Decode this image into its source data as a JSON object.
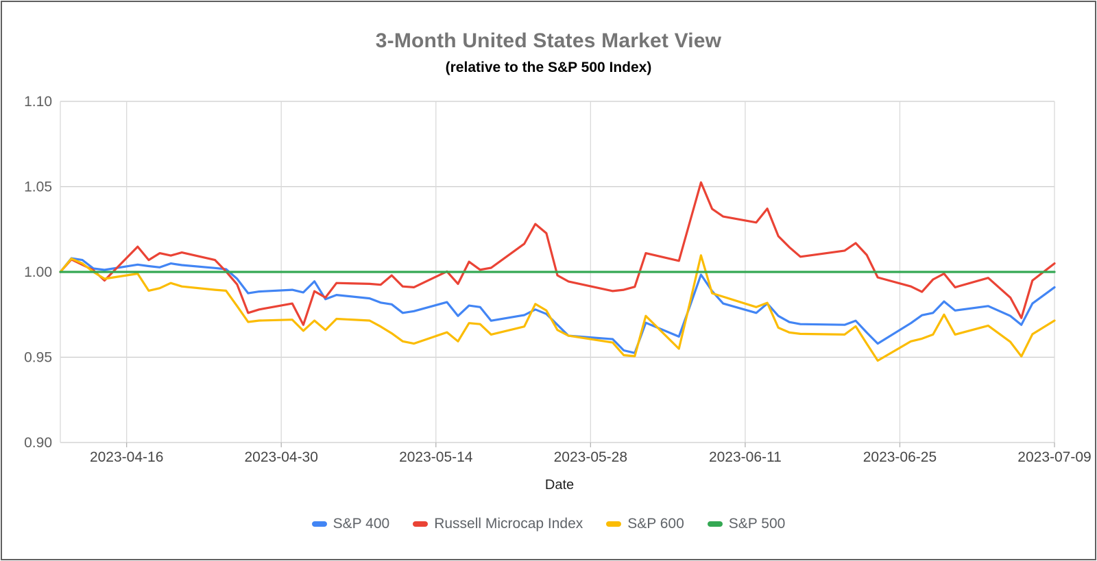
{
  "header": {
    "title": "3-Month United States Market View",
    "subtitle": "(relative to the S&P 500 Index)"
  },
  "axes": {
    "x_label": "Date",
    "y_tick_labels": [
      "1.10",
      "1.05",
      "1.00",
      "0.95",
      "0.90"
    ],
    "x_tick_labels": [
      "2023-04-16",
      "2023-04-30",
      "2023-05-14",
      "2023-05-28",
      "2023-06-11",
      "2023-06-25",
      "2023-07-09"
    ]
  },
  "colors": {
    "sp400": "#4285f4",
    "russell_microcap": "#ea4335",
    "sp600": "#fbbc04",
    "sp500": "#34a853",
    "grid_horizontal": "#cccccc",
    "grid_vertical": "#d9d9d9",
    "tick_stub": "#b3b3b3",
    "y_label_text": "#5f5f5f",
    "x_label_text": "#464646",
    "title_text": "#757575",
    "frame_border": "#5f5f5f"
  },
  "chart_data": {
    "type": "line",
    "title": "3-Month United States Market View",
    "subtitle": "(relative to the S&P 500 Index)",
    "xlabel": "Date",
    "ylabel": "",
    "ylim": [
      0.9,
      1.1
    ],
    "y_ticks": [
      0.9,
      0.95,
      1.0,
      1.05,
      1.1
    ],
    "x_range": [
      "2023-04-10",
      "2023-07-09"
    ],
    "x_ticks": [
      "2023-04-16",
      "2023-04-30",
      "2023-05-14",
      "2023-05-28",
      "2023-06-11",
      "2023-06-25",
      "2023-07-09"
    ],
    "grid": true,
    "legend_position": "bottom",
    "dates": [
      "2023-04-10",
      "2023-04-11",
      "2023-04-12",
      "2023-04-13",
      "2023-04-14",
      "2023-04-17",
      "2023-04-18",
      "2023-04-19",
      "2023-04-20",
      "2023-04-21",
      "2023-04-24",
      "2023-04-25",
      "2023-04-26",
      "2023-04-27",
      "2023-04-28",
      "2023-05-01",
      "2023-05-02",
      "2023-05-03",
      "2023-05-04",
      "2023-05-05",
      "2023-05-08",
      "2023-05-09",
      "2023-05-10",
      "2023-05-11",
      "2023-05-12",
      "2023-05-15",
      "2023-05-16",
      "2023-05-17",
      "2023-05-18",
      "2023-05-19",
      "2023-05-22",
      "2023-05-23",
      "2023-05-24",
      "2023-05-25",
      "2023-05-26",
      "2023-05-30",
      "2023-05-31",
      "2023-06-01",
      "2023-06-02",
      "2023-06-05",
      "2023-06-06",
      "2023-06-07",
      "2023-06-08",
      "2023-06-09",
      "2023-06-12",
      "2023-06-13",
      "2023-06-14",
      "2023-06-15",
      "2023-06-16",
      "2023-06-20",
      "2023-06-21",
      "2023-06-22",
      "2023-06-23",
      "2023-06-26",
      "2023-06-27",
      "2023-06-28",
      "2023-06-29",
      "2023-06-30",
      "2023-07-03",
      "2023-07-05",
      "2023-07-06",
      "2023-07-07",
      "2023-07-09"
    ],
    "series": [
      {
        "name": "S&P 400",
        "color": "#4285f4",
        "values": [
          1.0,
          1.008,
          1.007,
          1.002,
          1.0012,
          1.0043,
          1.0034,
          1.0027,
          1.005,
          1.004,
          1.0023,
          1.0016,
          0.996,
          0.9875,
          0.9885,
          0.9895,
          0.988,
          0.9945,
          0.984,
          0.9865,
          0.9845,
          0.982,
          0.981,
          0.976,
          0.977,
          0.9823,
          0.9742,
          0.9803,
          0.9794,
          0.9714,
          0.9747,
          0.978,
          0.9754,
          0.969,
          0.9626,
          0.9606,
          0.954,
          0.9525,
          0.9702,
          0.9621,
          0.98,
          0.9984,
          0.9888,
          0.9815,
          0.976,
          0.9815,
          0.9742,
          0.9706,
          0.9694,
          0.969,
          0.9714,
          0.9645,
          0.958,
          0.97,
          0.9746,
          0.976,
          0.9827,
          0.9774,
          0.98,
          0.9742,
          0.969,
          0.9815,
          0.991
        ]
      },
      {
        "name": "Russell Microcap Index",
        "color": "#ea4335",
        "values": [
          1.0,
          1.0073,
          1.0042,
          1.001,
          0.995,
          1.0148,
          1.007,
          1.011,
          1.0096,
          1.0114,
          1.007,
          1.0003,
          0.9927,
          0.976,
          0.978,
          0.9815,
          0.969,
          0.9887,
          0.985,
          0.9935,
          0.993,
          0.9925,
          0.998,
          0.9915,
          0.991,
          1.0003,
          0.993,
          1.006,
          1.0013,
          1.0024,
          1.0165,
          1.0281,
          1.0227,
          0.998,
          0.9944,
          0.9888,
          0.9895,
          0.9913,
          1.011,
          1.0065,
          1.0295,
          1.0525,
          1.037,
          1.0325,
          1.029,
          1.0371,
          1.021,
          1.0145,
          1.0089,
          1.0125,
          1.0169,
          1.01,
          0.9968,
          0.9915,
          0.9883,
          0.9956,
          0.999,
          0.991,
          0.9965,
          0.985,
          0.973,
          0.995,
          1.005
        ]
      },
      {
        "name": "S&P 600",
        "color": "#fbbc04",
        "values": [
          1.0,
          1.0078,
          1.005,
          1.0,
          0.996,
          0.999,
          0.989,
          0.9905,
          0.9935,
          0.9915,
          0.9895,
          0.989,
          0.98,
          0.9707,
          0.9715,
          0.972,
          0.9655,
          0.9715,
          0.966,
          0.9725,
          0.9715,
          0.968,
          0.964,
          0.9593,
          0.958,
          0.9646,
          0.9593,
          0.97,
          0.9694,
          0.9633,
          0.968,
          0.9812,
          0.9774,
          0.966,
          0.9626,
          0.9586,
          0.9512,
          0.9506,
          0.9742,
          0.955,
          0.982,
          1.0097,
          0.9875,
          0.9855,
          0.9794,
          0.9819,
          0.9673,
          0.9645,
          0.9637,
          0.9633,
          0.9681,
          0.958,
          0.948,
          0.9593,
          0.9609,
          0.9633,
          0.975,
          0.9633,
          0.9685,
          0.959,
          0.9505,
          0.9635,
          0.9715
        ]
      },
      {
        "name": "S&P 500",
        "color": "#34a853",
        "values": [
          1,
          1,
          1,
          1,
          1,
          1,
          1,
          1,
          1,
          1,
          1,
          1,
          1,
          1,
          1,
          1,
          1,
          1,
          1,
          1,
          1,
          1,
          1,
          1,
          1,
          1,
          1,
          1,
          1,
          1,
          1,
          1,
          1,
          1,
          1,
          1,
          1,
          1,
          1,
          1,
          1,
          1,
          1,
          1,
          1,
          1,
          1,
          1,
          1,
          1,
          1,
          1,
          1,
          1,
          1,
          1,
          1,
          1,
          1,
          1,
          1,
          1,
          1
        ]
      }
    ]
  }
}
